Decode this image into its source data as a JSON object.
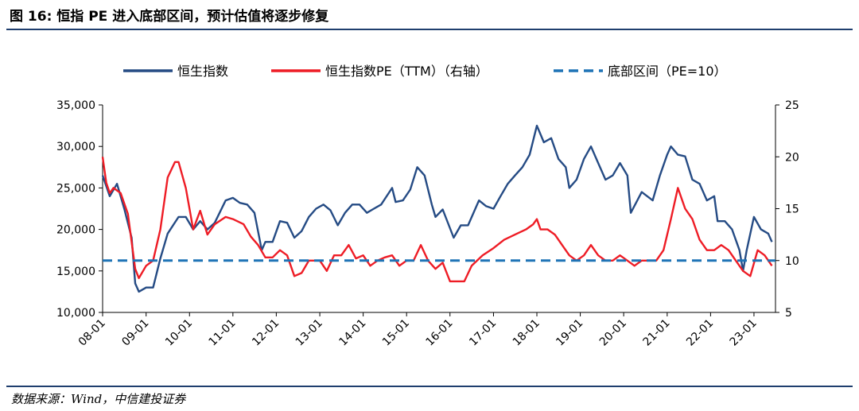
{
  "header": {
    "title": "图 16:  恒指 PE 进入底部区间，预计估值将逐步修复"
  },
  "footer": {
    "source": "数据来源：Wind，中信建投证券"
  },
  "chart_data": {
    "type": "line",
    "legend_position": "top",
    "grid": false,
    "x_tick_labels": [
      "08-01",
      "09-01",
      "10-01",
      "11-01",
      "12-01",
      "13-01",
      "14-01",
      "15-01",
      "16-01",
      "17-01",
      "18-01",
      "19-01",
      "20-01",
      "21-01",
      "22-01",
      "23-01"
    ],
    "left_axis": {
      "ylim": [
        10000,
        35000
      ],
      "ticks": [
        "10,000",
        "15,000",
        "20,000",
        "25,000",
        "30,000",
        "35,000"
      ]
    },
    "right_axis": {
      "ylim": [
        5,
        25
      ],
      "ticks": [
        "5",
        "10",
        "15",
        "20",
        "25"
      ]
    },
    "series": [
      {
        "name": "恒生指数",
        "axis": "left",
        "color": "#254b84",
        "dates": [
          "2008-01",
          "2008-03",
          "2008-05",
          "2008-07",
          "2008-09",
          "2008-10",
          "2008-11",
          "2009-01",
          "2009-03",
          "2009-05",
          "2009-07",
          "2009-10",
          "2009-12",
          "2010-02",
          "2010-04",
          "2010-06",
          "2010-08",
          "2010-11",
          "2011-01",
          "2011-03",
          "2011-05",
          "2011-07",
          "2011-09",
          "2011-10",
          "2011-12",
          "2012-02",
          "2012-04",
          "2012-06",
          "2012-08",
          "2012-10",
          "2012-12",
          "2013-02",
          "2013-04",
          "2013-06",
          "2013-08",
          "2013-10",
          "2013-12",
          "2014-02",
          "2014-04",
          "2014-06",
          "2014-09",
          "2014-10",
          "2014-12",
          "2015-02",
          "2015-04",
          "2015-06",
          "2015-08",
          "2015-09",
          "2015-11",
          "2016-02",
          "2016-04",
          "2016-06",
          "2016-09",
          "2016-11",
          "2017-01",
          "2017-03",
          "2017-05",
          "2017-07",
          "2017-09",
          "2017-11",
          "2018-01",
          "2018-03",
          "2018-05",
          "2018-07",
          "2018-09",
          "2018-10",
          "2018-12",
          "2019-02",
          "2019-04",
          "2019-06",
          "2019-08",
          "2019-10",
          "2019-12",
          "2020-02",
          "2020-03",
          "2020-06",
          "2020-09",
          "2020-11",
          "2021-01",
          "2021-02",
          "2021-04",
          "2021-06",
          "2021-08",
          "2021-10",
          "2021-12",
          "2022-02",
          "2022-03",
          "2022-05",
          "2022-07",
          "2022-09",
          "2022-10",
          "2022-11",
          "2023-01",
          "2023-03",
          "2023-05",
          "2023-06"
        ],
        "values": [
          26500,
          24000,
          25500,
          22500,
          19000,
          13500,
          12500,
          13000,
          13000,
          16500,
          19500,
          21500,
          21500,
          20000,
          21000,
          20000,
          20800,
          23500,
          23800,
          23200,
          23000,
          22000,
          17500,
          18500,
          18500,
          21000,
          20800,
          19000,
          19800,
          21500,
          22500,
          23000,
          22300,
          20500,
          22000,
          23000,
          23000,
          22000,
          22500,
          23000,
          25000,
          23300,
          23500,
          24800,
          27500,
          26500,
          23000,
          21500,
          22400,
          19000,
          20500,
          20500,
          23500,
          22800,
          22500,
          24000,
          25500,
          26500,
          27500,
          29000,
          32500,
          30500,
          31000,
          28500,
          27500,
          25000,
          26000,
          28500,
          30000,
          28000,
          26000,
          26500,
          28000,
          26500,
          22000,
          24500,
          23500,
          26500,
          29000,
          30000,
          29000,
          28800,
          26000,
          25500,
          23500,
          24000,
          21000,
          21000,
          20000,
          17500,
          15000,
          17500,
          21500,
          20000,
          19500,
          18500
        ]
      },
      {
        "name": "恒生指数PE（TTM）（右轴）",
        "axis": "right",
        "color": "#ee1c25",
        "dates": [
          "2008-01",
          "2008-02",
          "2008-03",
          "2008-04",
          "2008-06",
          "2008-08",
          "2008-10",
          "2008-11",
          "2009-01",
          "2009-03",
          "2009-05",
          "2009-07",
          "2009-09",
          "2009-10",
          "2009-12",
          "2010-02",
          "2010-04",
          "2010-06",
          "2010-08",
          "2010-11",
          "2011-01",
          "2011-04",
          "2011-06",
          "2011-08",
          "2011-10",
          "2011-12",
          "2012-02",
          "2012-04",
          "2012-06",
          "2012-08",
          "2012-10",
          "2013-01",
          "2013-03",
          "2013-05",
          "2013-07",
          "2013-09",
          "2013-11",
          "2014-01",
          "2014-03",
          "2014-05",
          "2014-07",
          "2014-09",
          "2014-11",
          "2015-01",
          "2015-03",
          "2015-05",
          "2015-07",
          "2015-09",
          "2015-11",
          "2016-01",
          "2016-03",
          "2016-05",
          "2016-07",
          "2016-10",
          "2017-01",
          "2017-04",
          "2017-07",
          "2017-10",
          "2017-12",
          "2018-01",
          "2018-02",
          "2018-04",
          "2018-06",
          "2018-08",
          "2018-10",
          "2018-12",
          "2019-02",
          "2019-04",
          "2019-06",
          "2019-08",
          "2019-10",
          "2019-12",
          "2020-02",
          "2020-04",
          "2020-06",
          "2020-08",
          "2020-10",
          "2020-12",
          "2021-02",
          "2021-04",
          "2021-06",
          "2021-08",
          "2021-10",
          "2021-12",
          "2022-02",
          "2022-04",
          "2022-06",
          "2022-08",
          "2022-10",
          "2022-12",
          "2023-02",
          "2023-04",
          "2023-06"
        ],
        "values": [
          20,
          17.5,
          16.5,
          17,
          16.5,
          14.5,
          9.2,
          8.3,
          9.5,
          10,
          13,
          18,
          19.5,
          19.5,
          17,
          13,
          14.8,
          12.5,
          13.5,
          14.2,
          14,
          13.5,
          12.3,
          11.5,
          10.3,
          10.3,
          11,
          10.5,
          8.5,
          8.8,
          10,
          10,
          9,
          10.5,
          10.5,
          11.5,
          10.2,
          10.5,
          9.5,
          10,
          10.3,
          10.5,
          9.5,
          10,
          10,
          11.5,
          10,
          9.2,
          9.8,
          8,
          8,
          8,
          9.5,
          10.5,
          11.2,
          12,
          12.5,
          13,
          13.5,
          14,
          13,
          13,
          12.5,
          11.5,
          10.5,
          10,
          10.5,
          11.5,
          10.5,
          10,
          10,
          10.5,
          10,
          9.5,
          10,
          10,
          10,
          11,
          14,
          17,
          15,
          14,
          12,
          11,
          11,
          11.5,
          11,
          10,
          9,
          8.5,
          11,
          10.5,
          9.5
        ]
      },
      {
        "name": "底部区间（PE=10）",
        "axis": "right",
        "color": "#1e73b6",
        "constant": 10
      }
    ]
  }
}
